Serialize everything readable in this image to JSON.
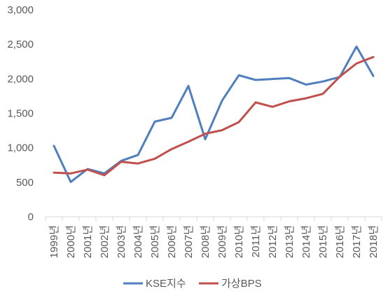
{
  "chart_data": {
    "type": "line",
    "categories": [
      "1999년",
      "2000년",
      "2001년",
      "2002년",
      "2003년",
      "2004년",
      "2005년",
      "2006년",
      "2007년",
      "2008년",
      "2009년",
      "2010년",
      "2011년",
      "2012년",
      "2013년",
      "2014년",
      "2015년",
      "2016년",
      "2017년",
      "2018년"
    ],
    "series": [
      {
        "name": "KSE지수",
        "color": "#4F7FBD",
        "values": [
          1028,
          504,
          693,
          628,
          810,
          896,
          1379,
          1434,
          1897,
          1124,
          1682,
          2051,
          1983,
          1997,
          2011,
          1916,
          1961,
          2026,
          2467,
          2041
        ]
      },
      {
        "name": "가상BPS",
        "color": "#C0504D",
        "values": [
          640,
          627,
          683,
          602,
          797,
          772,
          841,
          980,
          1088,
          1203,
          1255,
          1372,
          1658,
          1594,
          1673,
          1718,
          1782,
          2030,
          2222,
          2316
        ]
      }
    ],
    "ylim": [
      0,
      3000
    ],
    "yticks": [
      "0",
      "500",
      "1,000",
      "1,500",
      "2,000",
      "2,500",
      "3,000"
    ],
    "ytick_values": [
      0,
      500,
      1000,
      1500,
      2000,
      2500,
      3000
    ],
    "grid": false,
    "legend": "bottom",
    "title": "",
    "xlabel": "",
    "ylabel": ""
  }
}
